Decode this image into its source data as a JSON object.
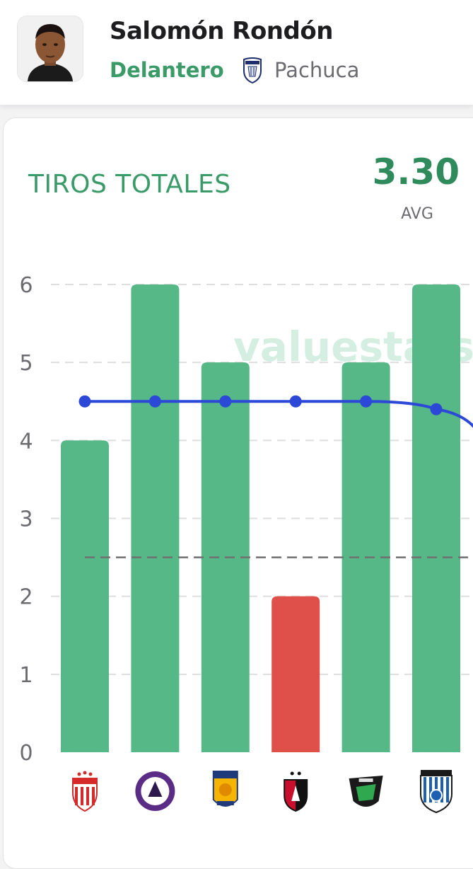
{
  "player": {
    "name": "Salomón Rondón",
    "position": "Delantero",
    "team": "Pachuca"
  },
  "stat": {
    "title": "TIROS TOTALES",
    "avg_value": "3.30",
    "avg_label": "AVG",
    "watermark": "valuestats"
  },
  "colors": {
    "accent_green": "#3a9a68",
    "bar_green": "#55b886",
    "bar_red": "#e0504b",
    "trend_blue": "#2b48d6",
    "threshold_gray": "#707070"
  },
  "chart_data": {
    "type": "bar",
    "categories": [
      "Necaxa",
      "Mazatlán",
      "Tigres UANL",
      "Atlas",
      "FC Juárez",
      "Querétaro"
    ],
    "values": [
      4,
      6,
      5,
      2,
      5,
      6
    ],
    "bar_colors": [
      "green",
      "green",
      "green",
      "red",
      "green",
      "green"
    ],
    "trend_line": [
      4.5,
      4.5,
      4.5,
      4.5,
      4.5,
      4.4
    ],
    "threshold": 2.5,
    "y_ticks": [
      "0",
      "1",
      "2",
      "3",
      "4",
      "5",
      "6"
    ],
    "ylim": [
      0,
      6
    ],
    "grid": true
  }
}
